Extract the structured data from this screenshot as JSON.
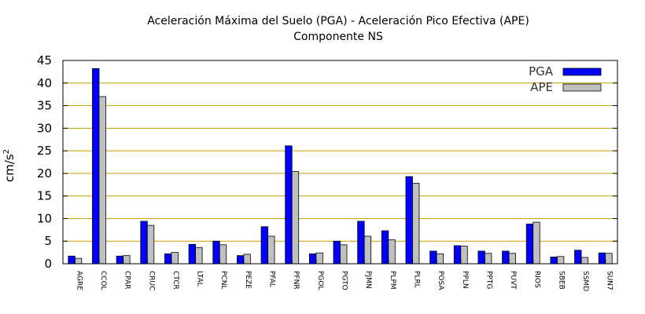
{
  "chart_data": {
    "type": "bar",
    "title": "Aceleración Máxima del Suelo (PGA) -  Aceleración Pico Efectiva (APE)",
    "subtitle": "Componente NS",
    "ylabel": "cm/s",
    "ylabel_sup": "2",
    "xlabel": "",
    "ylim": [
      0,
      45
    ],
    "yticks": [
      0,
      5,
      10,
      15,
      20,
      25,
      30,
      35,
      40,
      45
    ],
    "grid": true,
    "legend_position": "top-right",
    "categories": [
      "AGRE",
      "CCOL",
      "CPAR",
      "CRUC",
      "CTCR",
      "LTAL",
      "PCNL",
      "PEZE",
      "PFAL",
      "PFNR",
      "PGOL",
      "PGTO",
      "PJMN",
      "PLPM",
      "PLRL",
      "POSA",
      "PPLN",
      "PPTG",
      "PUVT",
      "RIOS",
      "SBEB",
      "SSMD",
      "SUN7"
    ],
    "series": [
      {
        "name": "PGA",
        "color": "#0000ff",
        "values": [
          1.7,
          43.2,
          1.7,
          9.4,
          2.2,
          4.3,
          5.0,
          1.8,
          8.2,
          26.1,
          2.2,
          5.0,
          9.4,
          7.3,
          19.3,
          2.8,
          4.0,
          2.8,
          2.8,
          8.8,
          1.5,
          3.0,
          2.4
        ]
      },
      {
        "name": "APE",
        "color": "#c0c0c0",
        "values": [
          1.2,
          37.0,
          1.8,
          8.5,
          2.5,
          3.6,
          4.2,
          2.1,
          6.1,
          20.4,
          2.4,
          4.2,
          6.1,
          5.3,
          17.8,
          2.2,
          3.9,
          2.3,
          2.3,
          9.2,
          1.6,
          1.4,
          2.3
        ]
      }
    ],
    "gridline_color": "#c8a000"
  }
}
